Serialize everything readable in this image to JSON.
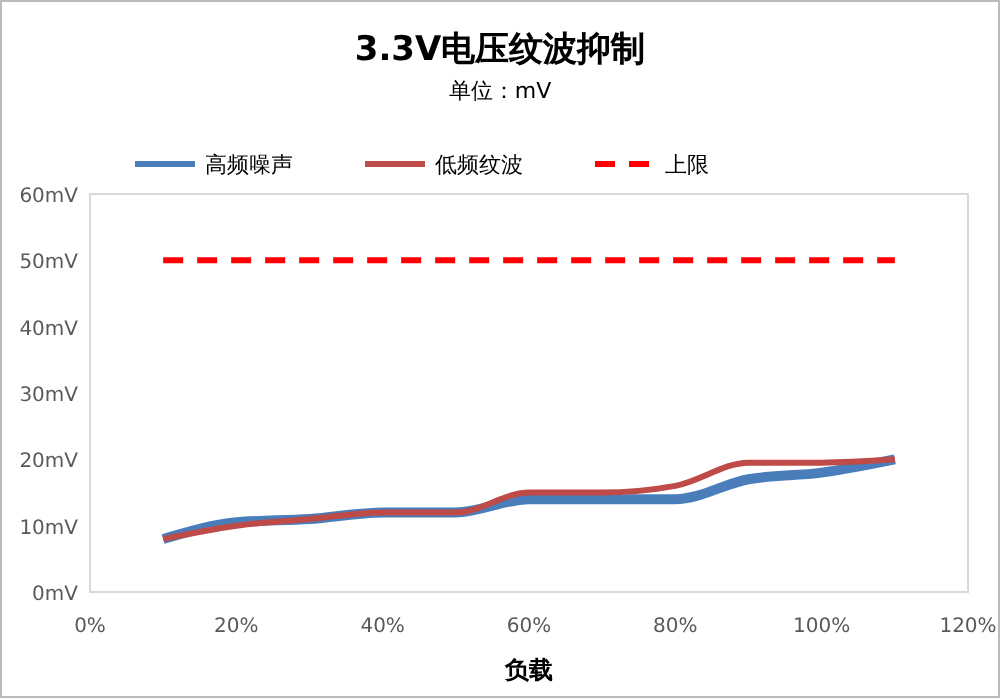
{
  "chart_data": {
    "type": "line",
    "title": "3.3V电压纹波抑制",
    "subtitle": "单位：mV",
    "xlabel": "负载",
    "x": [
      10,
      20,
      30,
      40,
      50,
      60,
      70,
      80,
      90,
      100,
      110
    ],
    "series": [
      {
        "name": "高频噪声",
        "color": "#4a7ebb",
        "values": [
          8,
          10.5,
          11,
          12,
          12,
          14,
          14,
          14,
          17,
          18,
          20
        ]
      },
      {
        "name": "低频纹波",
        "color": "#be4b48",
        "values": [
          8,
          10,
          11,
          12,
          12,
          15,
          15,
          16,
          19.5,
          19.5,
          20
        ]
      },
      {
        "name": "上限",
        "color": "#ff0000",
        "line_style": "dashed",
        "values": [
          50,
          50,
          50,
          50,
          50,
          50,
          50,
          50,
          50,
          50,
          50
        ]
      }
    ],
    "xlim": [
      0,
      120
    ],
    "xticks": [
      {
        "value": 0,
        "label": "0%"
      },
      {
        "value": 20,
        "label": "20%"
      },
      {
        "value": 40,
        "label": "40%"
      },
      {
        "value": 60,
        "label": "60%"
      },
      {
        "value": 80,
        "label": "80%"
      },
      {
        "value": 100,
        "label": "100%"
      },
      {
        "value": 120,
        "label": "120%"
      }
    ],
    "ylim": [
      0,
      60
    ],
    "yticks": [
      {
        "value": 0,
        "label": "0mV"
      },
      {
        "value": 10,
        "label": "10mV"
      },
      {
        "value": 20,
        "label": "20mV"
      },
      {
        "value": 30,
        "label": "30mV"
      },
      {
        "value": 40,
        "label": "40mV"
      },
      {
        "value": 50,
        "label": "50mV"
      },
      {
        "value": 60,
        "label": "60mV"
      }
    ],
    "legend": "top",
    "grid": false
  }
}
